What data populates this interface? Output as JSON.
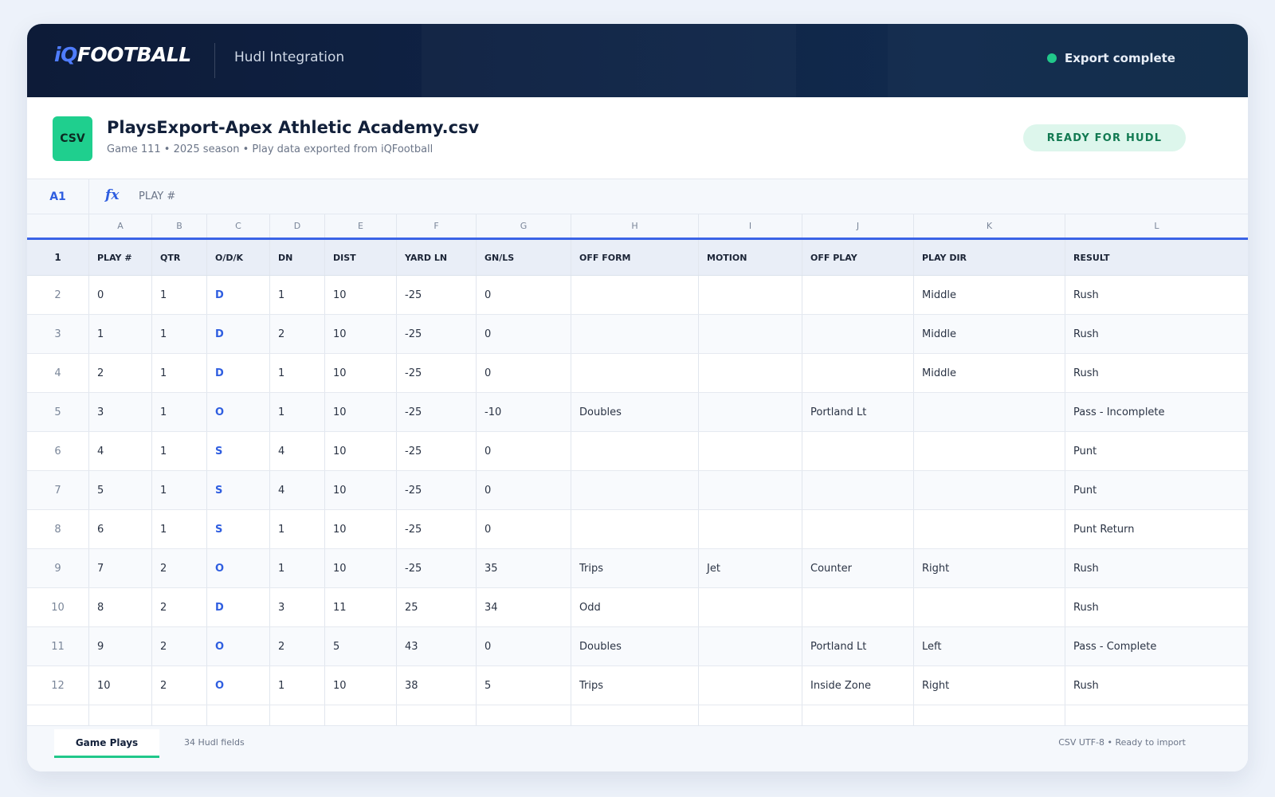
{
  "app": {
    "logo_prefix": "iQ",
    "logo_suffix": "FOOTBALL",
    "subtitle": "Hudl Integration",
    "status": "Export complete",
    "status_color": "#21c88a"
  },
  "file": {
    "icon_label": "CSV",
    "name": "PlaysExport-Apex Athletic Academy.csv",
    "meta": "Game 111 • 2025 season • Play data exported from iQFootball",
    "badge": "READY FOR HUDL"
  },
  "formula": {
    "cell_ref": "A1",
    "fx": "fx",
    "value": "PLAY #"
  },
  "sheet": {
    "column_letters": [
      "A",
      "B",
      "C",
      "D",
      "E",
      "F",
      "G",
      "H",
      "I",
      "J",
      "K",
      "L"
    ],
    "header_row_number": "1",
    "headers": [
      "PLAY #",
      "QTR",
      "O/D/K",
      "DN",
      "DIST",
      "YARD LN",
      "GN/LS",
      "OFF FORM",
      "MOTION",
      "OFF PLAY",
      "PLAY DIR",
      "RESULT"
    ],
    "rows": [
      {
        "n": "2",
        "cells": [
          "0",
          "1",
          "D",
          "1",
          "10",
          "-25",
          "0",
          "",
          "",
          "",
          "Middle",
          "Rush"
        ]
      },
      {
        "n": "3",
        "cells": [
          "1",
          "1",
          "D",
          "2",
          "10",
          "-25",
          "0",
          "",
          "",
          "",
          "Middle",
          "Rush"
        ]
      },
      {
        "n": "4",
        "cells": [
          "2",
          "1",
          "D",
          "1",
          "10",
          "-25",
          "0",
          "",
          "",
          "",
          "Middle",
          "Rush"
        ]
      },
      {
        "n": "5",
        "cells": [
          "3",
          "1",
          "O",
          "1",
          "10",
          "-25",
          "-10",
          "Doubles",
          "",
          "Portland Lt",
          "",
          "Pass - Incomplete"
        ]
      },
      {
        "n": "6",
        "cells": [
          "4",
          "1",
          "S",
          "4",
          "10",
          "-25",
          "0",
          "",
          "",
          "",
          "",
          "Punt"
        ]
      },
      {
        "n": "7",
        "cells": [
          "5",
          "1",
          "S",
          "4",
          "10",
          "-25",
          "0",
          "",
          "",
          "",
          "",
          "Punt"
        ]
      },
      {
        "n": "8",
        "cells": [
          "6",
          "1",
          "S",
          "1",
          "10",
          "-25",
          "0",
          "",
          "",
          "",
          "",
          "Punt Return"
        ]
      },
      {
        "n": "9",
        "cells": [
          "7",
          "2",
          "O",
          "1",
          "10",
          "-25",
          "35",
          "Trips",
          "Jet",
          "Counter",
          "Right",
          "Rush"
        ]
      },
      {
        "n": "10",
        "cells": [
          "8",
          "2",
          "D",
          "3",
          "11",
          "25",
          "34",
          "Odd",
          "",
          "",
          "",
          "Rush"
        ]
      },
      {
        "n": "11",
        "cells": [
          "9",
          "2",
          "O",
          "2",
          "5",
          "43",
          "0",
          "Doubles",
          "",
          "Portland Lt",
          "Left",
          "Pass - Complete"
        ]
      },
      {
        "n": "12",
        "cells": [
          "10",
          "2",
          "O",
          "1",
          "10",
          "38",
          "5",
          "Trips",
          "",
          "Inside Zone",
          "Right",
          "Rush"
        ]
      }
    ]
  },
  "footer": {
    "active_tab": "Game Plays",
    "field_count": "34 Hudl fields",
    "encoding": "CSV UTF-8 • Ready to import"
  },
  "colors": {
    "accent_blue": "#2f5ee0",
    "accent_green": "#21c88a",
    "header_bg": "#0d1b38"
  }
}
